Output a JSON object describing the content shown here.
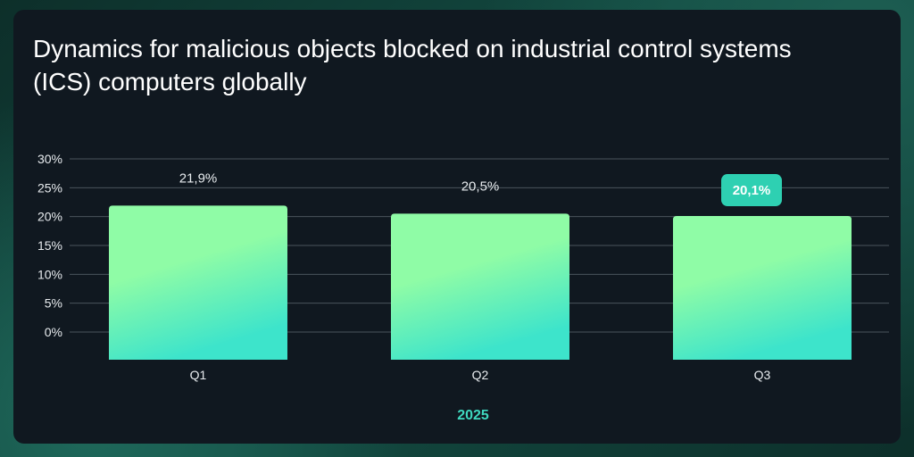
{
  "chart_data": {
    "type": "bar",
    "title": "Dynamics for malicious objects blocked on industrial control systems (ICS) computers globally",
    "categories": [
      "Q1",
      "Q2",
      "Q3"
    ],
    "values": [
      21.9,
      20.5,
      20.1
    ],
    "data_labels": [
      "21,9%",
      "20,5%",
      "20,1%"
    ],
    "highlighted_index": 2,
    "xlabel": "2025",
    "ylabel": "",
    "ylim": [
      0,
      30
    ],
    "yticks": [
      "0%",
      "5%",
      "10%",
      "15%",
      "20%",
      "25%",
      "30%"
    ],
    "grid": true,
    "colors": {
      "bar_top": "#8ffca6",
      "bar_bottom": "#3de4cb",
      "highlight_badge": "#2ed0b2",
      "xlabel": "#3fd8bf",
      "background": "#101820",
      "gridline": "#4a545c"
    }
  }
}
